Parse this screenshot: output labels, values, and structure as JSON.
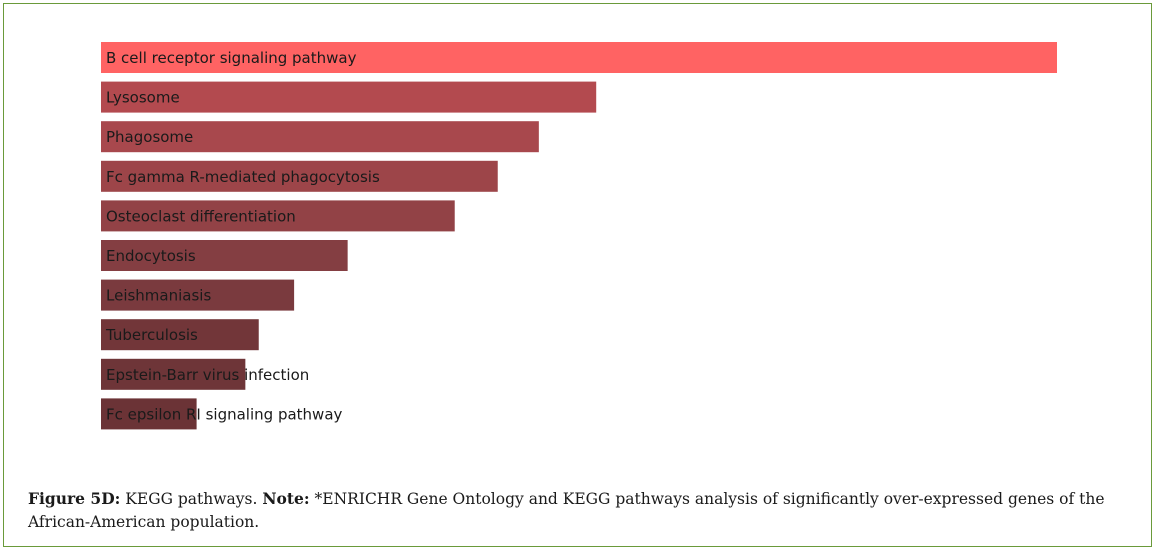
{
  "chart_data": {
    "type": "bar",
    "orientation": "horizontal",
    "categories": [
      "B cell receptor signaling pathway",
      "Lysosome",
      "Phagosome",
      "Fc gamma R-mediated phagocytosis",
      "Osteoclast differentiation",
      "Endocytosis",
      "Leishmaniasis",
      "Tuberculosis",
      "Epstein-Barr virus infection",
      "Fc epsilon RI signaling pathway"
    ],
    "values": [
      1.0,
      0.518,
      0.458,
      0.415,
      0.37,
      0.258,
      0.202,
      0.165,
      0.151,
      0.1
    ],
    "colors": [
      "#ff6363",
      "#b34a4f",
      "#a8484d",
      "#9d4549",
      "#924246",
      "#843e42",
      "#7a3a3e",
      "#723639",
      "#6e3538",
      "#6b3336"
    ],
    "title": "",
    "xlabel": "",
    "ylabel": "",
    "xlim": [
      0,
      1
    ],
    "grid": false,
    "legend": "none"
  },
  "caption": {
    "figure_label": "Figure 5D:",
    "figure_text": " KEGG pathways. ",
    "note_label": "Note:",
    "note_text": " *ENRICHR Gene Ontology and KEGG pathways analysis of significantly over-expressed genes of the African-American population."
  }
}
